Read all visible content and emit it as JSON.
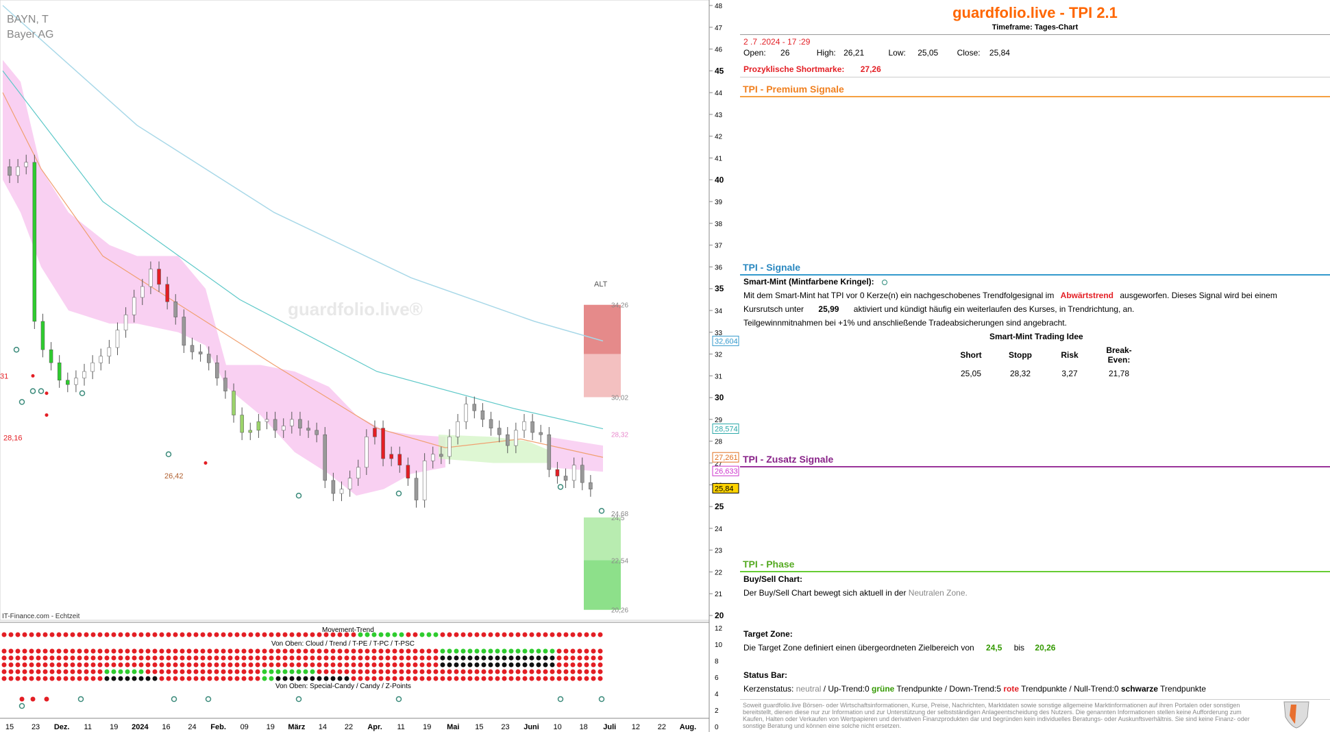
{
  "chart_meta": {
    "ticker": "BAYN, T",
    "name": "Bayer AG",
    "watermark": "guardfolio.live®",
    "source": "IT-Finance.com - Echtzeit",
    "alt_label": "ALT"
  },
  "chart_data": {
    "type": "candlestick",
    "x_tick_labels": [
      "15",
      "23",
      "Dez.",
      "11",
      "19",
      "2024",
      "16",
      "24",
      "Feb.",
      "09",
      "19",
      "März",
      "14",
      "22",
      "Apr.",
      "11",
      "19",
      "Mai",
      "15",
      "23",
      "Juni",
      "10",
      "18",
      "Juli",
      "12",
      "22",
      "Aug."
    ],
    "y_tick_labels": [
      "48",
      "47",
      "46",
      "45",
      "44",
      "43",
      "42",
      "41",
      "40",
      "39",
      "38",
      "37",
      "36",
      "35",
      "34",
      "33",
      "32",
      "31",
      "30",
      "29",
      "28",
      "27",
      "26",
      "25",
      "24",
      "23",
      "22",
      "21",
      "20"
    ],
    "ylim": [
      20,
      48
    ],
    "price_markers": [
      {
        "label": "32,604",
        "value": 32.604,
        "color": "#3399cc"
      },
      {
        "label": "28,574",
        "value": 28.574,
        "color": "#2aa8a8"
      },
      {
        "label": "27,261",
        "value": 27.261,
        "color": "#e07020"
      },
      {
        "label": "26,633",
        "value": 26.633,
        "color": "#cc33cc"
      },
      {
        "label": "25,84",
        "value": 25.84,
        "color": "#000000"
      }
    ],
    "zone_labels": [
      {
        "label": "34,26",
        "value": 34.26
      },
      {
        "label": "30,02",
        "value": 30.02
      },
      {
        "label": "28,32",
        "value": 28.32
      },
      {
        "label": "24,68",
        "value": 24.68
      },
      {
        "label": "24,5",
        "value": 24.5
      },
      {
        "label": "22,54",
        "value": 22.54
      },
      {
        "label": "20,26",
        "value": 20.26
      }
    ],
    "chart_annotations": [
      {
        "label": "28,16",
        "value": 28.16
      },
      {
        "label": "26,42",
        "value": 26.42
      },
      {
        "label": "31",
        "value": 31
      }
    ],
    "closes": [
      40.2,
      40.6,
      40.8,
      33.5,
      32.2,
      31.6,
      30.8,
      30.6,
      30.9,
      31.2,
      31.6,
      31.9,
      32.3,
      33.1,
      33.8,
      34.6,
      35.1,
      35.9,
      35.2,
      34.4,
      33.7,
      32.4,
      32.1,
      32.0,
      31.6,
      30.9,
      30.3,
      29.2,
      28.4,
      28.5,
      28.9,
      29.0,
      28.5,
      28.7,
      29.0,
      28.6,
      28.5,
      28.3,
      26.2,
      25.6,
      25.8,
      26.3,
      26.8,
      28.2,
      28.6,
      27.2,
      27.4,
      26.9,
      26.3,
      25.3,
      27.1,
      27.4,
      27.3,
      28.2,
      28.9,
      29.7,
      29.4,
      29.0,
      28.6,
      28.3,
      27.8,
      28.5,
      28.9,
      28.4,
      28.3,
      26.7,
      26.4,
      26.2,
      26.9,
      26.1,
      25.8
    ]
  },
  "subpanel": {
    "y_tick_labels": [
      "12",
      "10",
      "8",
      "6",
      "4",
      "2",
      "0"
    ],
    "movement_trend": "Movement-Trend",
    "cloud_trend": "Von Oben: Cloud / Trend / T-PE / T-PC / T-PSC",
    "special_candy": "Von Oben: Special-Candy / Candy / Z-Points"
  },
  "panel": {
    "title": "guardfolio.live - TPI 2.1",
    "timeframe": "Timeframe: Tages-Chart",
    "date": "2 .7 .2024 - 17 :29",
    "open_label": "Open:",
    "open": "26",
    "high_label": "High:",
    "high": "26,21",
    "low_label": "Low:",
    "low": "25,05",
    "close_label": "Close:",
    "close": "25,84",
    "shortmarke_label": "Prozyklische Shortmarke:",
    "shortmarke": "27,26",
    "premium_title": "TPI - Premium Signale",
    "signale_title": "TPI - Signale",
    "smart_mint_label": "Smart-Mint (Mintfarbene Kringel):",
    "sm_line1_a": "Mit dem Smart-Mint hat TPI vor 0  Kerze(n) ein nachgeschobenes Trendfolgesignal im",
    "sm_line1_b": "Abwärtstrend",
    "sm_line1_c": "ausgeworfen. Dieses Signal wird bei einem",
    "sm_line2_a": "Kursrutsch unter",
    "sm_line2_b": "25,99",
    "sm_line2_c": "aktiviert und kündigt häufig ein weiterlaufen des Kurses, in Trendrichtung, an.",
    "sm_line3": "Teilgewinnmitnahmen bei +1% und anschließende Tradeabsicherungen sind angebracht.",
    "idea_title": "Smart-Mint Trading Idee",
    "idea_headers": [
      "Short",
      "Stopp",
      "Risk",
      "Break-Even:"
    ],
    "idea_values": [
      "25,05",
      "28,32",
      "3,27",
      "21,78"
    ],
    "zusatz_title": "TPI - Zusatz Signale",
    "phase_title": "TPI - Phase",
    "buysell_label": "Buy/Sell Chart:",
    "buysell_a": "Der Buy/Sell Chart bewegt sich aktuell in der",
    "buysell_b": "Neutralen Zone.",
    "target_label": "Target Zone:",
    "target_a": "Die Target Zone definiert einen übergeordneten Zielbereich von",
    "target_from": "24,5",
    "target_bis": "bis",
    "target_to": "20,26",
    "status_label": "Status Bar:",
    "status_a": "Kerzenstatus:",
    "status_neutral": "neutral",
    "status_b": " / Up-Trend:0 ",
    "status_gruene": "grüne",
    "status_c": " Trendpunkte  / Down-Trend:5 ",
    "status_rote": "rote",
    "status_d": " Trendpunkte / Null-Trend:0 ",
    "status_schwarze": "schwarze",
    "status_e": " Trendpunkte",
    "disclaimer": "Soweit guardfolio.live Börsen- oder Wirtschaftsinformationen, Kurse, Preise, Nachrichten, Marktdaten sowie sonstige allgemeine Marktinformationen auf ihren Portalen oder sonstigen bereitstellt, dienen diese nur zur Information und zur Unterstützung der selbstständigen Anlageentscheidung des Nutzers. Die genannten Informationen stellen keine Aufforderung zum Kaufen, Halten oder Verkaufen von Wertpapieren und derivativen Finanzprodukten dar und begründen kein individuelles Beratungs- oder Auskunftsverhältnis. Sie sind keine Finanz- oder sonstige Beratung und können eine solche nicht ersetzen."
  },
  "colors": {
    "title_orange": "#ff6600",
    "premium_line": "#f5a040",
    "signale_line": "#3399cc",
    "zusatz_line": "#993399",
    "phase_line": "#66cc33",
    "down_red": "#e31e24",
    "up_green": "#2ecc2e",
    "red_text": "#e31e24",
    "green_text": "#339900"
  }
}
